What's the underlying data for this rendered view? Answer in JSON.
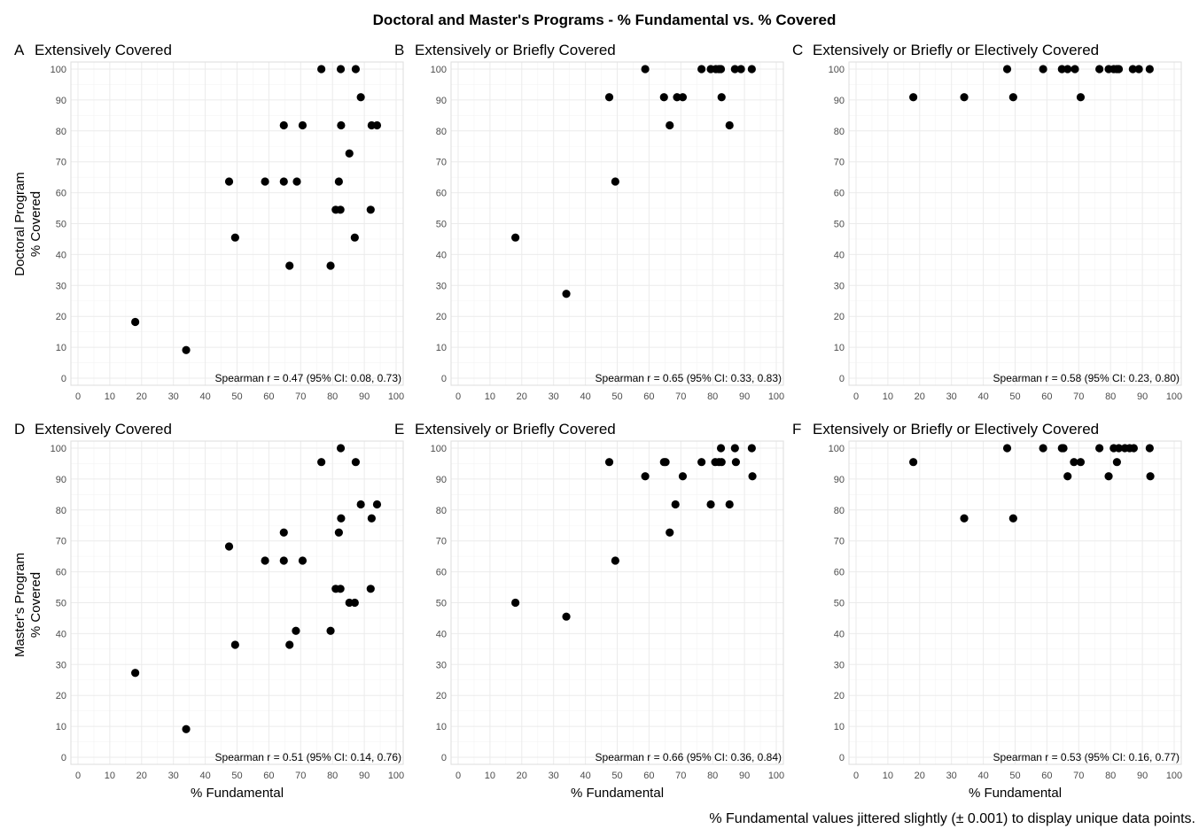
{
  "title": "Doctoral and Master's Programs - % Fundamental vs. % Covered",
  "caption": "% Fundamental values jittered slightly (± 0.001) to display unique data points.",
  "row_labels": [
    [
      "Doctoral Program",
      "% Covered"
    ],
    [
      "Master's Program",
      "% Covered"
    ]
  ],
  "x_axis_label": "% Fundamental",
  "chart_data": [
    {
      "type": "scatter",
      "panel": "A",
      "title": "Extensively Covered",
      "xlabel": "",
      "ylabel": "Doctoral Program % Covered",
      "xlim": [
        0,
        100
      ],
      "ylim": [
        0,
        100
      ],
      "xticks": [
        0,
        10,
        20,
        30,
        40,
        50,
        60,
        70,
        80,
        90,
        100
      ],
      "yticks": [
        0,
        10,
        20,
        30,
        40,
        50,
        60,
        70,
        80,
        90,
        100
      ],
      "annotation": "Spearman r = 0.47 (95% CI: 0.08, 0.73)",
      "points": [
        [
          18,
          18.2
        ],
        [
          34,
          9.1
        ],
        [
          47.5,
          63.6
        ],
        [
          49.4,
          45.5
        ],
        [
          58.8,
          63.6
        ],
        [
          64.7,
          81.8
        ],
        [
          64.7,
          63.6
        ],
        [
          66.5,
          36.4
        ],
        [
          68.8,
          63.6
        ],
        [
          70.6,
          81.8
        ],
        [
          76.5,
          100
        ],
        [
          79.4,
          36.4
        ],
        [
          81,
          54.5
        ],
        [
          82,
          63.6
        ],
        [
          82.5,
          54.5
        ],
        [
          82.6,
          100
        ],
        [
          82.7,
          81.8
        ],
        [
          85.3,
          72.7
        ],
        [
          87,
          45.5
        ],
        [
          87.3,
          100
        ],
        [
          88.9,
          90.9
        ],
        [
          92,
          54.5
        ],
        [
          92.3,
          81.8
        ],
        [
          94,
          81.8
        ]
      ]
    },
    {
      "type": "scatter",
      "panel": "B",
      "title": "Extensively or Briefly Covered",
      "xlabel": "",
      "ylabel": "",
      "xlim": [
        0,
        100
      ],
      "ylim": [
        0,
        100
      ],
      "xticks": [
        0,
        10,
        20,
        30,
        40,
        50,
        60,
        70,
        80,
        90,
        100
      ],
      "yticks": [
        0,
        10,
        20,
        30,
        40,
        50,
        60,
        70,
        80,
        90,
        100
      ],
      "annotation": "Spearman r = 0.65 (95% CI: 0.33, 0.83)",
      "points": [
        [
          18,
          45.5
        ],
        [
          34,
          27.3
        ],
        [
          47.5,
          90.9
        ],
        [
          49.4,
          63.6
        ],
        [
          58.8,
          100
        ],
        [
          64.7,
          90.9
        ],
        [
          66.5,
          81.8
        ],
        [
          68.8,
          90.9
        ],
        [
          70.6,
          90.9
        ],
        [
          76.5,
          100
        ],
        [
          79.4,
          100
        ],
        [
          81,
          100
        ],
        [
          82,
          100
        ],
        [
          82.6,
          100
        ],
        [
          82.8,
          90.9
        ],
        [
          85.3,
          81.8
        ],
        [
          87,
          100
        ],
        [
          88.9,
          100
        ],
        [
          92.3,
          100
        ]
      ]
    },
    {
      "type": "scatter",
      "panel": "C",
      "title": "Extensively or Briefly or Electively Covered",
      "xlabel": "",
      "ylabel": "",
      "xlim": [
        0,
        100
      ],
      "ylim": [
        0,
        100
      ],
      "xticks": [
        0,
        10,
        20,
        30,
        40,
        50,
        60,
        70,
        80,
        90,
        100
      ],
      "yticks": [
        0,
        10,
        20,
        30,
        40,
        50,
        60,
        70,
        80,
        90,
        100
      ],
      "annotation": "Spearman r = 0.58 (95% CI: 0.23, 0.80)",
      "points": [
        [
          18,
          90.9
        ],
        [
          34,
          90.9
        ],
        [
          47.5,
          100
        ],
        [
          49.4,
          90.9
        ],
        [
          58.8,
          100
        ],
        [
          64.7,
          100
        ],
        [
          66.5,
          100
        ],
        [
          68.8,
          100
        ],
        [
          70.6,
          90.9
        ],
        [
          76.5,
          100
        ],
        [
          79.4,
          100
        ],
        [
          81,
          100
        ],
        [
          82,
          100
        ],
        [
          82.6,
          100
        ],
        [
          87,
          100
        ],
        [
          88.9,
          100
        ],
        [
          92.3,
          100
        ]
      ]
    },
    {
      "type": "scatter",
      "panel": "D",
      "title": "Extensively Covered",
      "xlabel": "% Fundamental",
      "ylabel": "Master's Program % Covered",
      "xlim": [
        0,
        100
      ],
      "ylim": [
        0,
        100
      ],
      "xticks": [
        0,
        10,
        20,
        30,
        40,
        50,
        60,
        70,
        80,
        90,
        100
      ],
      "yticks": [
        0,
        10,
        20,
        30,
        40,
        50,
        60,
        70,
        80,
        90,
        100
      ],
      "annotation": "Spearman r = 0.51 (95% CI: 0.14, 0.76)",
      "points": [
        [
          18,
          27.3
        ],
        [
          34,
          9.1
        ],
        [
          47.5,
          68.2
        ],
        [
          49.4,
          36.4
        ],
        [
          58.8,
          63.6
        ],
        [
          64.7,
          72.7
        ],
        [
          64.7,
          63.6
        ],
        [
          66.5,
          36.4
        ],
        [
          68.5,
          40.9
        ],
        [
          70.6,
          63.6
        ],
        [
          76.5,
          95.5
        ],
        [
          79.4,
          40.9
        ],
        [
          81,
          54.5
        ],
        [
          82,
          72.7
        ],
        [
          82.5,
          54.5
        ],
        [
          82.6,
          100
        ],
        [
          82.7,
          77.3
        ],
        [
          85.3,
          50
        ],
        [
          87,
          50
        ],
        [
          87.3,
          95.5
        ],
        [
          88.9,
          81.8
        ],
        [
          92,
          54.5
        ],
        [
          92.3,
          77.3
        ],
        [
          94,
          81.8
        ]
      ]
    },
    {
      "type": "scatter",
      "panel": "E",
      "title": "Extensively or Briefly Covered",
      "xlabel": "% Fundamental",
      "ylabel": "",
      "xlim": [
        0,
        100
      ],
      "ylim": [
        0,
        100
      ],
      "xticks": [
        0,
        10,
        20,
        30,
        40,
        50,
        60,
        70,
        80,
        90,
        100
      ],
      "yticks": [
        0,
        10,
        20,
        30,
        40,
        50,
        60,
        70,
        80,
        90,
        100
      ],
      "annotation": "Spearman r = 0.66 (95% CI: 0.36, 0.84)",
      "points": [
        [
          18,
          50
        ],
        [
          34,
          45.5
        ],
        [
          47.5,
          95.5
        ],
        [
          49.4,
          63.6
        ],
        [
          58.8,
          90.9
        ],
        [
          64.7,
          95.5
        ],
        [
          65.2,
          95.5
        ],
        [
          66.5,
          72.7
        ],
        [
          68.3,
          81.8
        ],
        [
          70.6,
          90.9
        ],
        [
          76.5,
          95.5
        ],
        [
          79.4,
          81.8
        ],
        [
          80.8,
          95.5
        ],
        [
          82,
          95.5
        ],
        [
          82.6,
          100
        ],
        [
          82.8,
          95.5
        ],
        [
          85.3,
          81.8
        ],
        [
          87,
          100
        ],
        [
          87.3,
          95.5
        ],
        [
          92.3,
          100
        ],
        [
          92.5,
          90.9
        ]
      ]
    },
    {
      "type": "scatter",
      "panel": "F",
      "title": "Extensively or Briefly or Electively Covered",
      "xlabel": "% Fundamental",
      "ylabel": "",
      "xlim": [
        0,
        100
      ],
      "ylim": [
        0,
        100
      ],
      "xticks": [
        0,
        10,
        20,
        30,
        40,
        50,
        60,
        70,
        80,
        90,
        100
      ],
      "yticks": [
        0,
        10,
        20,
        30,
        40,
        50,
        60,
        70,
        80,
        90,
        100
      ],
      "annotation": "Spearman r = 0.53 (95% CI: 0.16, 0.77)",
      "points": [
        [
          18,
          95.5
        ],
        [
          34,
          77.3
        ],
        [
          47.5,
          100
        ],
        [
          49.4,
          77.3
        ],
        [
          58.8,
          100
        ],
        [
          64.7,
          100
        ],
        [
          65.2,
          100
        ],
        [
          66.5,
          90.9
        ],
        [
          68.5,
          95.5
        ],
        [
          70.6,
          95.5
        ],
        [
          76.5,
          100
        ],
        [
          79.4,
          90.9
        ],
        [
          81,
          100
        ],
        [
          82,
          95.5
        ],
        [
          82.6,
          100
        ],
        [
          84.5,
          100
        ],
        [
          86,
          100
        ],
        [
          87.3,
          100
        ],
        [
          92.3,
          100
        ],
        [
          92.5,
          90.9
        ]
      ]
    }
  ]
}
